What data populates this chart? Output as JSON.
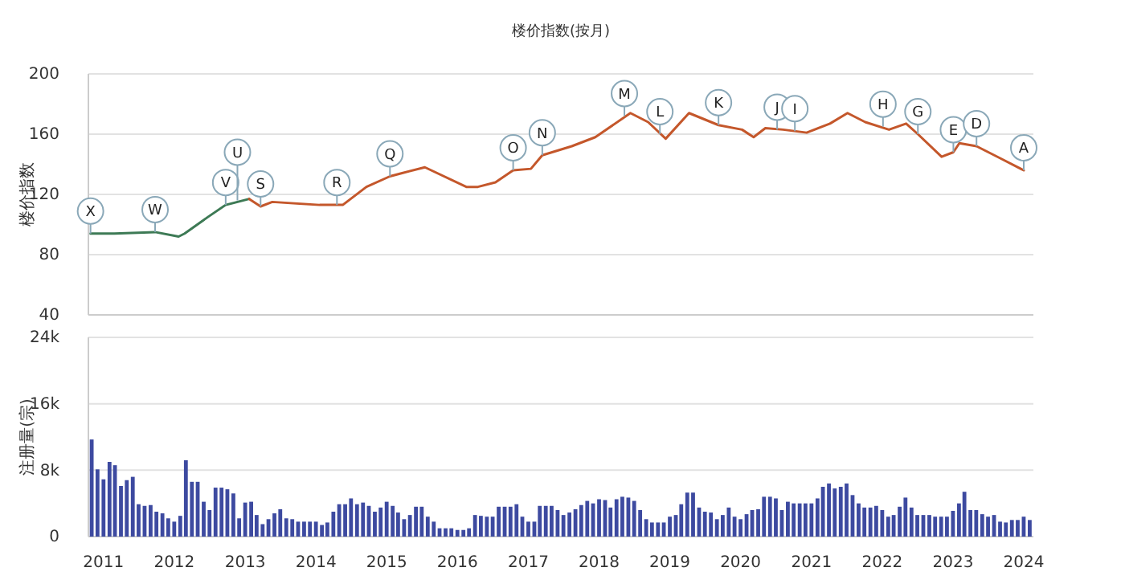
{
  "chart_data": [
    {
      "type": "line",
      "title": "楼价指数(按月)",
      "ylabel": "楼价指数",
      "xlim": [
        "2010-09-20",
        "2024-02-20"
      ],
      "xticks": [
        "2011",
        "2012",
        "2013",
        "2014",
        "2015",
        "2016",
        "2017",
        "2018",
        "2019",
        "2020",
        "2021",
        "2022",
        "2023",
        "2024"
      ],
      "ylim": [
        40,
        200
      ],
      "yticks": [
        40,
        80,
        120,
        160,
        200
      ],
      "grid": "y",
      "tick_labels": "y",
      "series": [
        {
          "color": "#3d7a55",
          "x": [
            "2010-10",
            "2011-02",
            "2011-09",
            "2012-01",
            "2012-02",
            "2012-06",
            "2012-09",
            "2013-01"
          ],
          "values": [
            94,
            94,
            95,
            92,
            94,
            105,
            113,
            117
          ]
        },
        {
          "color": "#c4572b",
          "x": [
            "2013-01",
            "2013-03",
            "2013-05",
            "2014-01",
            "2014-05",
            "2014-09",
            "2015-01",
            "2015-03",
            "2015-07",
            "2016-02",
            "2016-04",
            "2016-07",
            "2016-10",
            "2017-01",
            "2017-03",
            "2017-08",
            "2017-12",
            "2018-06",
            "2018-09",
            "2018-12",
            "2019-04",
            "2019-09",
            "2020-01",
            "2020-03",
            "2020-05",
            "2020-08",
            "2020-12",
            "2021-04",
            "2021-07",
            "2021-10",
            "2022-02",
            "2022-05",
            "2022-07",
            "2022-11",
            "2023-01",
            "2023-02",
            "2023-05",
            "2023-09",
            "2024-01"
          ],
          "values": [
            117,
            112,
            115,
            113,
            113,
            125,
            132,
            134,
            138,
            125,
            125,
            128,
            136,
            137,
            146,
            152,
            158,
            174,
            168,
            157,
            174,
            166,
            163,
            158,
            164,
            163,
            161,
            167,
            174,
            168,
            163,
            167,
            160,
            145,
            148,
            154,
            152,
            144,
            136
          ]
        }
      ],
      "annotations": [
        {
          "text": "X",
          "x": "2010-10",
          "y": 94
        },
        {
          "text": "W",
          "x": "2011-09",
          "y": 95
        },
        {
          "text": "V",
          "x": "2012-09",
          "y": 113
        },
        {
          "text": "U",
          "x": "2012-11",
          "y": 116
        },
        {
          "text": "S",
          "x": "2013-03",
          "y": 112
        },
        {
          "text": "R",
          "x": "2014-04",
          "y": 113
        },
        {
          "text": "Q",
          "x": "2015-01",
          "y": 132
        },
        {
          "text": "O",
          "x": "2016-10",
          "y": 136
        },
        {
          "text": "N",
          "x": "2017-03",
          "y": 146
        },
        {
          "text": "M",
          "x": "2018-05",
          "y": 172
        },
        {
          "text": "L",
          "x": "2018-11",
          "y": 160
        },
        {
          "text": "K",
          "x": "2019-09",
          "y": 166
        },
        {
          "text": "J",
          "x": "2020-07",
          "y": 163
        },
        {
          "text": "I",
          "x": "2020-10",
          "y": 162
        },
        {
          "text": "H",
          "x": "2022-01",
          "y": 165
        },
        {
          "text": "G",
          "x": "2022-07",
          "y": 160
        },
        {
          "text": "E",
          "x": "2023-01",
          "y": 148
        },
        {
          "text": "D",
          "x": "2023-05",
          "y": 152
        },
        {
          "text": "A",
          "x": "2024-01",
          "y": 136
        }
      ]
    },
    {
      "type": "bar",
      "ylabel": "注册量(宗)",
      "xlim": [
        "2010-10-15",
        "2024-02-20"
      ],
      "xticks": [
        "2011",
        "2012",
        "2013",
        "2014",
        "2015",
        "2016",
        "2017",
        "2018",
        "2019",
        "2020",
        "2021",
        "2022",
        "2023",
        "2024"
      ],
      "ylim": [
        0,
        24000
      ],
      "yticks": [
        0,
        {
          "value": 8000,
          "label": "8k"
        },
        {
          "value": 16000,
          "label": "16k"
        },
        {
          "value": 24000,
          "label": "24k"
        }
      ],
      "grid": "y",
      "color": "#3d4aa0",
      "x": [
        "2010-11",
        "2010-12",
        "2011-01",
        "2011-02",
        "2011-03",
        "2011-04",
        "2011-05",
        "2011-06",
        "2011-07",
        "2011-08",
        "2011-09",
        "2011-10",
        "2011-11",
        "2011-12",
        "2012-01",
        "2012-02",
        "2012-03",
        "2012-04",
        "2012-05",
        "2012-06",
        "2012-07",
        "2012-08",
        "2012-09",
        "2012-10",
        "2012-11",
        "2012-12",
        "2013-01",
        "2013-02",
        "2013-03",
        "2013-04",
        "2013-05",
        "2013-06",
        "2013-07",
        "2013-08",
        "2013-09",
        "2013-10",
        "2013-11",
        "2013-12",
        "2014-01",
        "2014-02",
        "2014-03",
        "2014-04",
        "2014-05",
        "2014-06",
        "2014-07",
        "2014-08",
        "2014-09",
        "2014-10",
        "2014-11",
        "2014-12",
        "2015-01",
        "2015-02",
        "2015-03",
        "2015-04",
        "2015-05",
        "2015-06",
        "2015-07",
        "2015-08",
        "2015-09",
        "2015-10",
        "2015-11",
        "2015-12",
        "2016-01",
        "2016-02",
        "2016-03",
        "2016-04",
        "2016-05",
        "2016-06",
        "2016-07",
        "2016-08",
        "2016-09",
        "2016-10",
        "2016-11",
        "2016-12",
        "2017-01",
        "2017-02",
        "2017-03",
        "2017-04",
        "2017-05",
        "2017-06",
        "2017-07",
        "2017-08",
        "2017-09",
        "2017-10",
        "2017-11",
        "2017-12",
        "2018-01",
        "2018-02",
        "2018-03",
        "2018-04",
        "2018-05",
        "2018-06",
        "2018-07",
        "2018-08",
        "2018-09",
        "2018-10",
        "2018-11",
        "2018-12",
        "2019-01",
        "2019-02",
        "2019-03",
        "2019-04",
        "2019-05",
        "2019-06",
        "2019-07",
        "2019-08",
        "2019-09",
        "2019-10",
        "2019-11",
        "2019-12",
        "2020-01",
        "2020-02",
        "2020-03",
        "2020-04",
        "2020-05",
        "2020-06",
        "2020-07",
        "2020-08",
        "2020-09",
        "2020-10",
        "2020-11",
        "2020-12",
        "2021-01",
        "2021-02",
        "2021-03",
        "2021-04",
        "2021-05",
        "2021-06",
        "2021-07",
        "2021-08",
        "2021-09",
        "2021-10",
        "2021-11",
        "2021-12",
        "2022-01",
        "2022-02",
        "2022-03",
        "2022-04",
        "2022-05",
        "2022-06",
        "2022-07",
        "2022-08",
        "2022-09",
        "2022-10",
        "2022-11",
        "2022-12",
        "2023-01",
        "2023-02",
        "2023-03",
        "2023-04",
        "2023-05",
        "2023-06",
        "2023-07",
        "2023-08",
        "2023-09",
        "2023-10",
        "2023-11",
        "2023-12",
        "2024-01",
        "2024-02"
      ],
      "values": [
        11700,
        8100,
        6900,
        9000,
        8600,
        6100,
        6800,
        7200,
        3900,
        3700,
        3800,
        3000,
        2800,
        2200,
        1800,
        2500,
        9200,
        6600,
        6600,
        4200,
        3200,
        5900,
        5900,
        5700,
        5200,
        2200,
        4100,
        4200,
        2600,
        1500,
        2100,
        2800,
        3300,
        2200,
        2100,
        1800,
        1800,
        1800,
        1800,
        1400,
        1700,
        3000,
        3900,
        3900,
        4600,
        3900,
        4100,
        3700,
        3000,
        3500,
        4200,
        3700,
        2900,
        2100,
        2600,
        3600,
        3600,
        2400,
        1800,
        1000,
        1000,
        1000,
        800,
        800,
        1000,
        2600,
        2500,
        2400,
        2400,
        3600,
        3600,
        3600,
        3900,
        2400,
        1800,
        1800,
        3700,
        3700,
        3700,
        3200,
        2600,
        2900,
        3300,
        3800,
        4300,
        4000,
        4500,
        4400,
        3500,
        4500,
        4800,
        4700,
        4300,
        3200,
        2100,
        1700,
        1700,
        1700,
        2400,
        2600,
        3900,
        5300,
        5300,
        3500,
        3000,
        2900,
        2100,
        2600,
        3500,
        2400,
        2100,
        2700,
        3200,
        3300,
        4800,
        4800,
        4600,
        3200,
        4200,
        4000,
        4000,
        4000,
        4000,
        4600,
        6000,
        6400,
        5800,
        6000,
        6400,
        5000,
        4000,
        3500,
        3500,
        3700,
        3200,
        2400,
        2600,
        3600,
        4700,
        3500,
        2600,
        2600,
        2600,
        2400,
        2400,
        2400,
        3100,
        4000,
        5400,
        3200,
        3200,
        2700,
        2400,
        2600,
        1800,
        1700,
        2000,
        2000,
        2400,
        2000
      ]
    }
  ]
}
